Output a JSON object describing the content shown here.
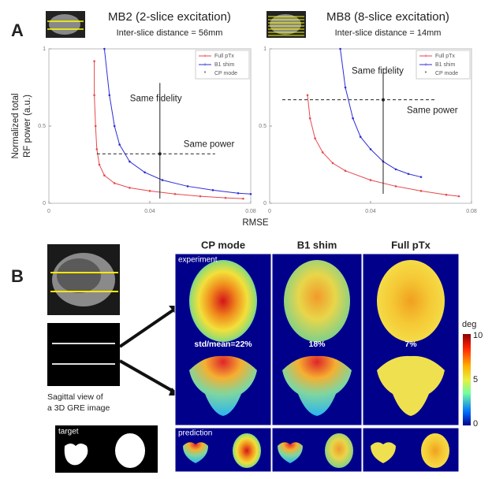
{
  "panel_a": {
    "label": "A"
  },
  "chart_data": [
    {
      "type": "line",
      "title": "MB2 (2-slice excitation)",
      "subtitle": "Inter-slice distance = 56mm",
      "ylabel": [
        "Normalized total",
        "RF power (a.u.)"
      ],
      "xlabel": "RMSE",
      "xlim": [
        0,
        0.08
      ],
      "xticks": [
        0,
        0.04,
        0.08
      ],
      "ylim": [
        0,
        1
      ],
      "yticks": [
        0,
        0.5,
        1
      ],
      "annotations": [
        "Same fidelity",
        "Same power"
      ],
      "series": [
        {
          "name": "Full pTx",
          "color": "#e8474c",
          "x": [
            0.018,
            0.018,
            0.0185,
            0.019,
            0.02,
            0.022,
            0.026,
            0.032,
            0.04,
            0.05,
            0.06,
            0.07,
            0.077
          ],
          "values": [
            0.92,
            0.7,
            0.5,
            0.35,
            0.25,
            0.18,
            0.13,
            0.1,
            0.08,
            0.06,
            0.045,
            0.035,
            0.03
          ]
        },
        {
          "name": "B1 shim",
          "color": "#2d2dd6",
          "x": [
            0.022,
            0.024,
            0.026,
            0.028,
            0.032,
            0.038,
            0.045,
            0.055,
            0.065,
            0.075,
            0.08
          ],
          "values": [
            1,
            0.7,
            0.5,
            0.38,
            0.27,
            0.2,
            0.15,
            0.11,
            0.085,
            0.065,
            0.06
          ]
        },
        {
          "name": "CP mode",
          "color": "#222222",
          "x": [
            0.044
          ],
          "values": [
            0.32
          ]
        }
      ]
    },
    {
      "type": "line",
      "title": "MB8 (8-slice excitation)",
      "subtitle": "Inter-slice distance = 14mm",
      "xlim": [
        0,
        0.08
      ],
      "xticks": [
        0,
        0.04,
        0.08
      ],
      "ylim": [
        0,
        1
      ],
      "yticks": [
        0,
        0.5,
        1
      ],
      "annotations": [
        "Same fidelity",
        "Same power"
      ],
      "series": [
        {
          "name": "Full pTx",
          "color": "#e8474c",
          "x": [
            0.015,
            0.016,
            0.018,
            0.021,
            0.025,
            0.03,
            0.04,
            0.05,
            0.06,
            0.07,
            0.075
          ],
          "values": [
            0.7,
            0.55,
            0.42,
            0.33,
            0.26,
            0.21,
            0.15,
            0.11,
            0.08,
            0.055,
            0.045
          ]
        },
        {
          "name": "B1 shim",
          "color": "#2d2dd6",
          "x": [
            0.028,
            0.03,
            0.033,
            0.036,
            0.04,
            0.045,
            0.05,
            0.055,
            0.06
          ],
          "values": [
            1,
            0.75,
            0.55,
            0.43,
            0.35,
            0.27,
            0.22,
            0.19,
            0.17
          ]
        },
        {
          "name": "CP mode",
          "color": "#222222",
          "x": [
            0.045
          ],
          "values": [
            0.67
          ]
        }
      ]
    }
  ],
  "panel_b": {
    "label": "B",
    "columns": [
      "CP mode",
      "B1 shim",
      "Full pTx"
    ],
    "experiment": "experiment",
    "stats": [
      "std/mean=22%",
      "18%",
      "7%"
    ],
    "prediction": "prediction",
    "target": "target",
    "caption": [
      "Sagittal view of",
      "a 3D GRE image"
    ],
    "colorbar": {
      "unit": "deg",
      "ticks": [
        "10",
        "5",
        "0"
      ]
    }
  }
}
